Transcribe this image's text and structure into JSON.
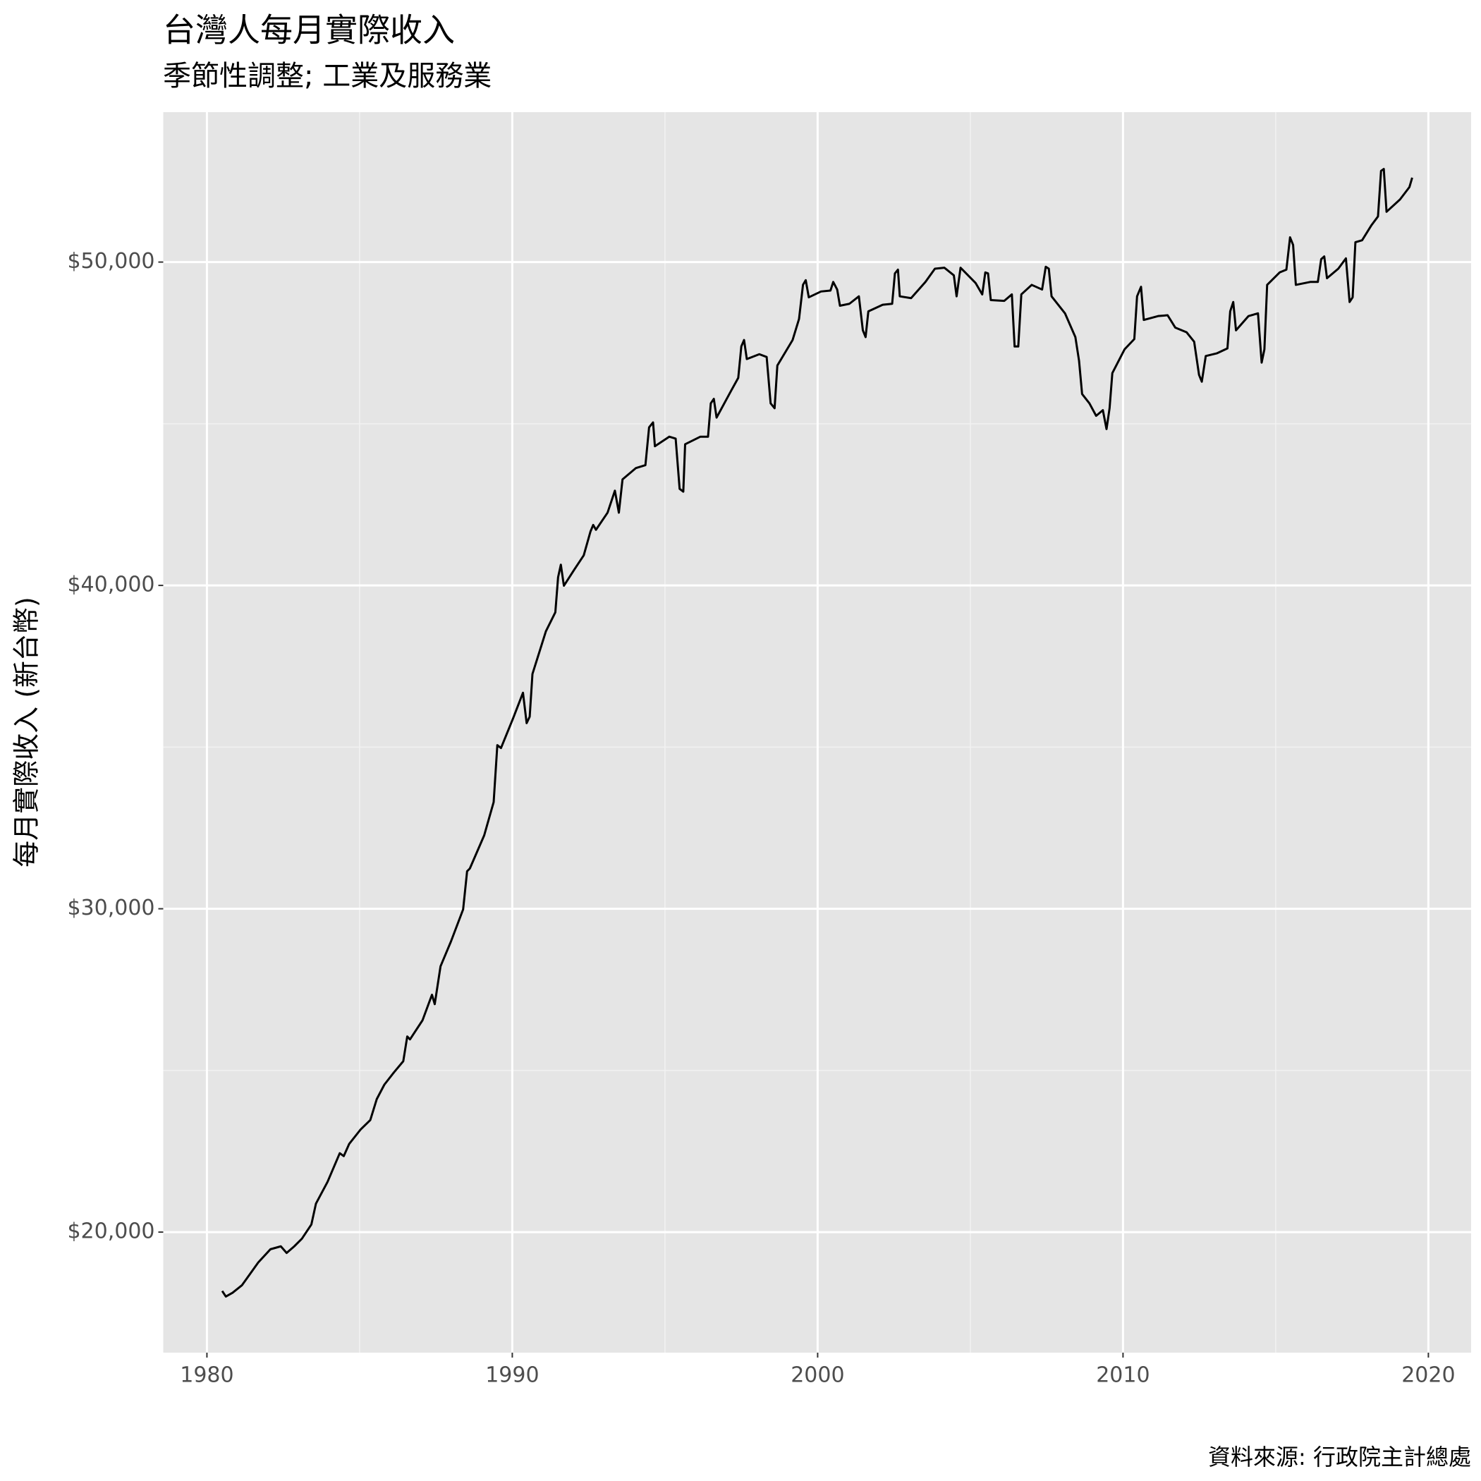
{
  "chart_data": {
    "type": "line",
    "title": "台灣人每月實際收入",
    "subtitle": "季節性調整; 工業及服務業",
    "y_label": "每月實際收入 (新台幣)",
    "caption": "資料來源: 行政院主計總處",
    "color": "#000000",
    "grid": true,
    "xlim": [
      1978.57,
      2021.4
    ],
    "xticks": [
      1980,
      1990,
      2000,
      2010,
      2020
    ],
    "xminor": [
      1985,
      1995,
      2005,
      2015
    ],
    "ylim": [
      16272,
      54637
    ],
    "yticks": [
      {
        "value": 20000,
        "label": "$20,000"
      },
      {
        "value": 30000,
        "label": "$30,000"
      },
      {
        "value": 40000,
        "label": "$40,000"
      },
      {
        "value": 50000,
        "label": "$50,000"
      }
    ],
    "yminor": [
      25000,
      35000,
      45000
    ],
    "x": [
      1980.5,
      1980.62,
      1980.84,
      1981.15,
      1981.46,
      1981.68,
      1982.08,
      1982.42,
      1982.61,
      1982.86,
      1983.11,
      1983.42,
      1983.57,
      1983.95,
      1984.35,
      1984.48,
      1984.66,
      1985.03,
      1985.35,
      1985.56,
      1985.81,
      1986.12,
      1986.43,
      1986.56,
      1986.65,
      1987.06,
      1987.37,
      1987.46,
      1987.65,
      1987.99,
      1988.39,
      1988.52,
      1988.61,
      1989.08,
      1989.39,
      1989.51,
      1989.63,
      1990.01,
      1990.35,
      1990.47,
      1990.57,
      1990.66,
      1991.1,
      1991.41,
      1991.5,
      1991.59,
      1991.69,
      1992.03,
      1992.34,
      1992.56,
      1992.65,
      1992.74,
      1993.12,
      1993.36,
      1993.49,
      1993.61,
      1994.05,
      1994.36,
      1994.48,
      1994.61,
      1994.67,
      1995.14,
      1995.35,
      1995.48,
      1995.6,
      1995.66,
      1996.16,
      1996.41,
      1996.5,
      1996.6,
      1996.69,
      1997.16,
      1997.4,
      1997.5,
      1997.59,
      1997.68,
      1998.09,
      1998.33,
      1998.46,
      1998.59,
      1998.68,
      1999.18,
      1999.39,
      1999.52,
      1999.61,
      1999.71,
      2000.11,
      2000.42,
      2000.51,
      2000.64,
      2000.73,
      2001.04,
      2001.35,
      2001.48,
      2001.57,
      2001.66,
      2002.13,
      2002.44,
      2002.53,
      2002.63,
      2002.69,
      2003.06,
      2003.53,
      2003.84,
      2004.15,
      2004.46,
      2004.55,
      2004.68,
      2005.17,
      2005.39,
      2005.49,
      2005.58,
      2005.67,
      2006.11,
      2006.36,
      2006.45,
      2006.57,
      2006.67,
      2007.01,
      2007.35,
      2007.47,
      2007.57,
      2007.66,
      2008.1,
      2008.44,
      2008.56,
      2008.66,
      2008.9,
      2009.12,
      2009.34,
      2009.46,
      2009.56,
      2009.65,
      2010.05,
      2010.37,
      2010.46,
      2010.59,
      2010.68,
      2011.15,
      2011.46,
      2011.71,
      2012.08,
      2012.33,
      2012.49,
      2012.58,
      2012.71,
      2013.08,
      2013.42,
      2013.51,
      2013.61,
      2013.7,
      2014.11,
      2014.42,
      2014.54,
      2014.63,
      2014.72,
      2015.13,
      2015.35,
      2015.47,
      2015.57,
      2015.66,
      2016.13,
      2016.38,
      2016.49,
      2016.59,
      2016.68,
      2017.05,
      2017.3,
      2017.42,
      2017.52,
      2017.61,
      2017.83,
      2018.14,
      2018.35,
      2018.45,
      2018.54,
      2018.63,
      2019.07,
      2019.38,
      2019.47
    ],
    "values": [
      18180,
      18007,
      18125,
      18360,
      18770,
      19060,
      19470,
      19560,
      19355,
      19560,
      19795,
      20235,
      20880,
      21555,
      22440,
      22350,
      22730,
      23170,
      23465,
      24110,
      24560,
      24935,
      25285,
      26050,
      25960,
      26550,
      27340,
      27050,
      28220,
      28985,
      29980,
      31160,
      31245,
      32270,
      33300,
      35060,
      34970,
      35850,
      36680,
      35740,
      35940,
      37260,
      38580,
      39170,
      40255,
      40640,
      39990,
      40490,
      40930,
      41665,
      41870,
      41720,
      42250,
      42930,
      42250,
      43280,
      43630,
      43720,
      44890,
      45040,
      44305,
      44600,
      44540,
      42985,
      42900,
      44365,
      44600,
      44600,
      45630,
      45770,
      45190,
      46010,
      46420,
      47390,
      47590,
      47000,
      47150,
      47065,
      45630,
      45480,
      46800,
      47590,
      48240,
      49295,
      49440,
      48910,
      49090,
      49120,
      49385,
      49150,
      48650,
      48710,
      48940,
      47890,
      47680,
      48475,
      48680,
      48710,
      49650,
      49765,
      48940,
      48885,
      49385,
      49795,
      49825,
      49590,
      48940,
      49825,
      49355,
      49000,
      49680,
      49650,
      48825,
      48800,
      49000,
      47390,
      47390,
      49000,
      49295,
      49150,
      49855,
      49795,
      48940,
      48415,
      47680,
      46950,
      45920,
      45630,
      45245,
      45420,
      44835,
      45480,
      46565,
      47300,
      47620,
      48940,
      49235,
      48210,
      48330,
      48355,
      47975,
      47830,
      47535,
      46510,
      46300,
      47095,
      47180,
      47330,
      48475,
      48765,
      47890,
      48330,
      48415,
      46890,
      47300,
      49295,
      49680,
      49765,
      50765,
      50530,
      49295,
      49385,
      49385,
      50090,
      50175,
      49500,
      49795,
      50115,
      48765,
      48910,
      50615,
      50675,
      51145,
      51410,
      52820,
      52880,
      51555,
      51935,
      52320,
      52610
    ]
  }
}
